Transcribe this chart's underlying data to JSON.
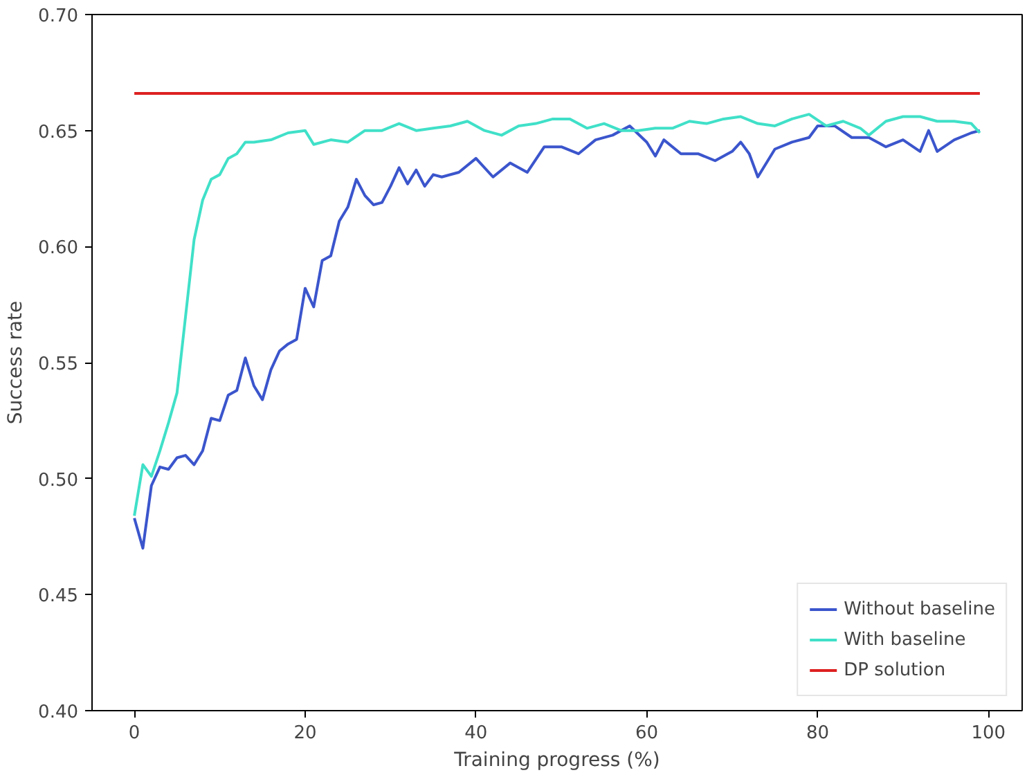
{
  "chart_data": {
    "type": "line",
    "xlabel": "Training progress (%)",
    "ylabel": "Success rate",
    "xlim": [
      -4.95,
      103.95
    ],
    "xticks": [
      0,
      20,
      40,
      60,
      80,
      100
    ],
    "ylim": [
      0.4,
      0.7
    ],
    "yticks": [
      {
        "value": 0.4,
        "label": "0.40"
      },
      0.45,
      {
        "value": 0.5,
        "label": "0.50"
      },
      0.55,
      {
        "value": 0.6,
        "label": "0.60"
      },
      0.65,
      {
        "value": 0.7,
        "label": "0.70"
      }
    ],
    "grid": false,
    "legend": "bottom right",
    "line_style": "solid",
    "series": [
      {
        "name": "Without baseline",
        "color": "#3b55cc",
        "x": [
          0,
          1,
          2,
          3,
          4,
          5,
          6,
          7,
          8,
          9,
          10,
          11,
          12,
          13,
          14,
          15,
          16,
          17,
          18,
          19,
          20,
          21,
          22,
          23,
          24,
          25,
          26,
          27,
          28,
          29,
          30,
          31,
          32,
          33,
          34,
          35,
          36,
          38,
          40,
          42,
          44,
          46,
          48,
          50,
          52,
          54,
          56,
          58,
          60,
          61,
          62,
          64,
          66,
          68,
          70,
          71,
          72,
          73,
          75,
          77,
          79,
          80,
          82,
          84,
          86,
          88,
          90,
          92,
          93,
          94,
          96,
          98,
          99
        ],
        "values": [
          0.483,
          0.47,
          0.497,
          0.505,
          0.504,
          0.509,
          0.51,
          0.506,
          0.512,
          0.526,
          0.525,
          0.536,
          0.538,
          0.552,
          0.54,
          0.534,
          0.547,
          0.555,
          0.558,
          0.56,
          0.582,
          0.574,
          0.594,
          0.596,
          0.611,
          0.617,
          0.629,
          0.622,
          0.618,
          0.619,
          0.626,
          0.634,
          0.627,
          0.633,
          0.626,
          0.631,
          0.63,
          0.632,
          0.638,
          0.63,
          0.636,
          0.632,
          0.643,
          0.643,
          0.64,
          0.646,
          0.648,
          0.652,
          0.645,
          0.639,
          0.646,
          0.64,
          0.64,
          0.637,
          0.641,
          0.645,
          0.64,
          0.63,
          0.642,
          0.645,
          0.647,
          0.652,
          0.652,
          0.647,
          0.647,
          0.643,
          0.646,
          0.641,
          0.65,
          0.641,
          0.646,
          0.649,
          0.65
        ]
      },
      {
        "name": "With baseline",
        "color": "#40e0c8",
        "x": [
          0,
          1,
          2,
          3,
          4,
          5,
          6,
          7,
          8,
          9,
          10,
          11,
          12,
          13,
          14,
          16,
          18,
          20,
          21,
          23,
          25,
          27,
          29,
          31,
          33,
          35,
          37,
          39,
          41,
          43,
          45,
          47,
          49,
          51,
          53,
          55,
          57,
          59,
          61,
          63,
          65,
          67,
          69,
          71,
          73,
          75,
          77,
          79,
          81,
          83,
          85,
          86,
          88,
          90,
          92,
          94,
          96,
          98,
          99
        ],
        "values": [
          0.484,
          0.506,
          0.501,
          0.512,
          0.524,
          0.537,
          0.57,
          0.603,
          0.62,
          0.629,
          0.631,
          0.638,
          0.64,
          0.645,
          0.645,
          0.646,
          0.649,
          0.65,
          0.644,
          0.646,
          0.645,
          0.65,
          0.65,
          0.653,
          0.65,
          0.651,
          0.652,
          0.654,
          0.65,
          0.648,
          0.652,
          0.653,
          0.655,
          0.655,
          0.651,
          0.653,
          0.65,
          0.65,
          0.651,
          0.651,
          0.654,
          0.653,
          0.655,
          0.656,
          0.653,
          0.652,
          0.655,
          0.657,
          0.652,
          0.654,
          0.651,
          0.648,
          0.654,
          0.656,
          0.656,
          0.654,
          0.654,
          0.653,
          0.649
        ]
      },
      {
        "name": "DP solution",
        "color": "#dd2020",
        "x": [
          0,
          99
        ],
        "values": [
          0.666,
          0.666
        ]
      }
    ]
  }
}
